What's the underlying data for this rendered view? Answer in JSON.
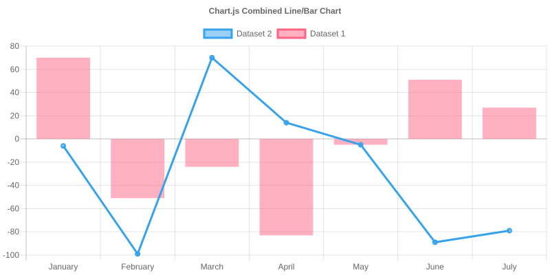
{
  "chart_data": {
    "type": "bar",
    "title": "Chart.js Combined Line/Bar Chart",
    "categories": [
      "January",
      "February",
      "March",
      "April",
      "May",
      "June",
      "July"
    ],
    "ylim": [
      -100,
      80
    ],
    "y_ticks": [
      80,
      60,
      40,
      20,
      0,
      -20,
      -40,
      -60,
      -80,
      -100
    ],
    "grid": true,
    "legend_position": "top",
    "series": [
      {
        "name": "Dataset 2",
        "type": "line",
        "values": [
          -6,
          -99,
          70,
          14,
          -5,
          -89,
          -79
        ],
        "color": "#36a2eb",
        "fill_color": "rgba(54,162,235,0.5)"
      },
      {
        "name": "Dataset 1",
        "type": "bar",
        "values": [
          70,
          -51,
          -24,
          -83,
          -5,
          51,
          27
        ],
        "color": "#ff6384",
        "fill_color": "rgba(255,99,132,0.5)"
      }
    ]
  }
}
